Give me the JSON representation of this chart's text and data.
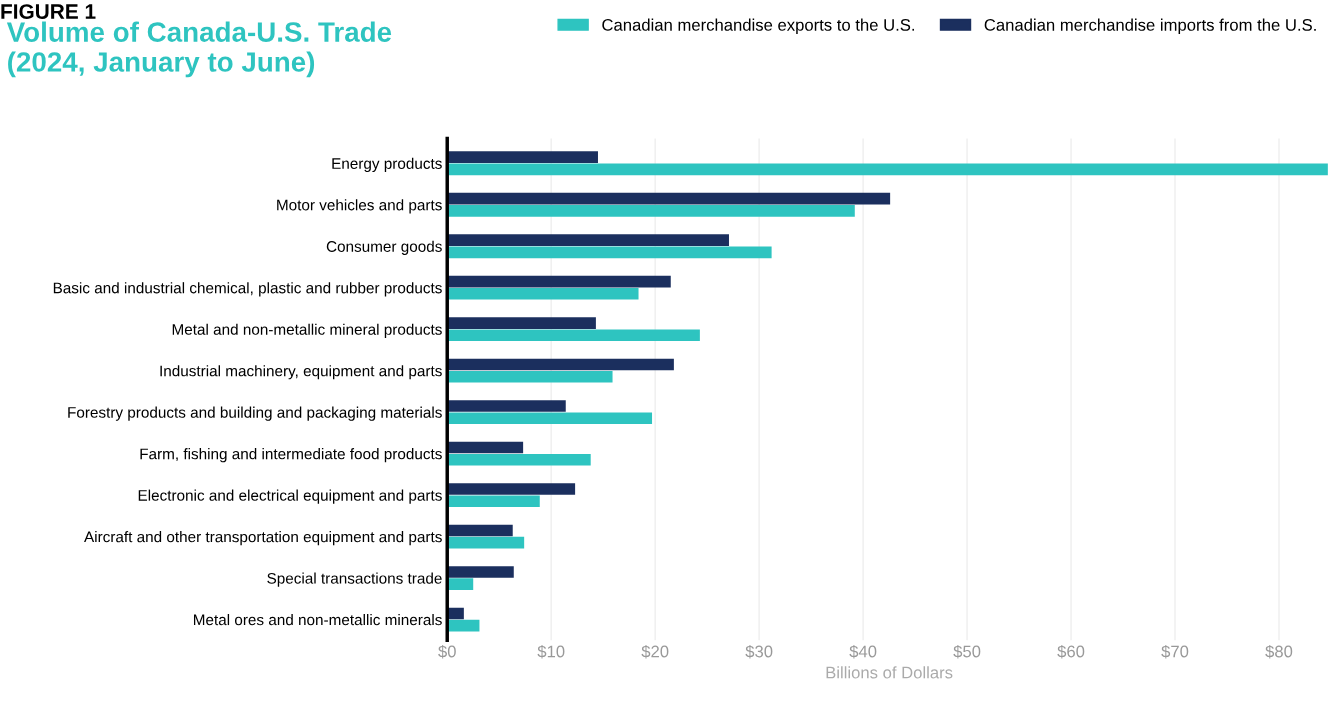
{
  "chart_data": {
    "type": "bar",
    "orientation": "horizontal",
    "title": "Volume of Canada-U.S. Trade\n(2024, January to June)",
    "annotations": [
      "FIGURE 1"
    ],
    "xlabel": "Billions of Dollars",
    "categories": [
      "Energy products",
      "Motor vehicles and parts",
      "Consumer goods",
      "Basic and industrial chemical, plastic and rubber products",
      "Metal and non-metallic mineral products",
      "Industrial machinery, equipment and parts",
      "Forestry products and building and packaging materials",
      "Farm, fishing and intermediate food products",
      "Electronic and electrical equipment and parts",
      "Aircraft and other transportation equipment and parts",
      "Special transactions trade",
      "Metal ores and non-metallic minerals"
    ],
    "series": [
      {
        "name": "Canadian merchandise exports to the U.S.",
        "color": "#2ec4c0",
        "values": [
          84.7,
          39.2,
          31.2,
          18.4,
          24.3,
          15.9,
          19.7,
          13.8,
          8.9,
          7.4,
          2.5,
          3.1
        ]
      },
      {
        "name": "Canadian merchandise imports from the U.S.",
        "color": "#1b2f5e",
        "values": [
          14.5,
          42.6,
          27.1,
          21.5,
          14.3,
          21.8,
          11.4,
          7.3,
          12.3,
          6.3,
          6.4,
          1.6
        ]
      }
    ],
    "xlim": [
      0,
      85
    ],
    "xticks": [
      {
        "value": 0,
        "label": "$0"
      },
      {
        "value": 10,
        "label": "$10"
      },
      {
        "value": 20,
        "label": "$20"
      },
      {
        "value": 30,
        "label": "$30"
      },
      {
        "value": 40,
        "label": "$40"
      },
      {
        "value": 50,
        "label": "$50"
      },
      {
        "value": 60,
        "label": "$60"
      },
      {
        "value": 70,
        "label": "$70"
      },
      {
        "value": 80,
        "label": "$80"
      }
    ],
    "grid": "x",
    "legend": "top right"
  }
}
